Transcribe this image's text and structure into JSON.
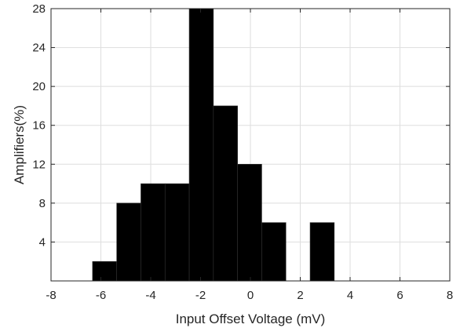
{
  "chart_data": {
    "type": "bar",
    "xlabel": "Input Offset Voltage (mV)",
    "ylabel": "Amplifiers(%)",
    "xlim": [
      -8,
      8
    ],
    "ylim": [
      0,
      28
    ],
    "xticks": [
      -8,
      -6,
      -4,
      -2,
      0,
      2,
      4,
      6,
      8
    ],
    "xtick_labels": [
      "-8",
      "-6",
      "-4",
      "-2",
      "0",
      "2",
      "4",
      "6",
      "8"
    ],
    "yticks": [
      4,
      8,
      12,
      16,
      20,
      24,
      28
    ],
    "ytick_labels": [
      "4",
      "8",
      "12",
      "16",
      "20",
      "24",
      "28"
    ],
    "grid": true,
    "bar_color": "#000000",
    "bin_width": 0.97,
    "bins": [
      {
        "x": -5.85,
        "value": 2
      },
      {
        "x": -4.88,
        "value": 8
      },
      {
        "x": -3.91,
        "value": 10
      },
      {
        "x": -2.94,
        "value": 10
      },
      {
        "x": -1.97,
        "value": 28
      },
      {
        "x": -1.0,
        "value": 18
      },
      {
        "x": -0.03,
        "value": 12
      },
      {
        "x": 0.94,
        "value": 6
      },
      {
        "x": 2.88,
        "value": 6
      }
    ]
  }
}
